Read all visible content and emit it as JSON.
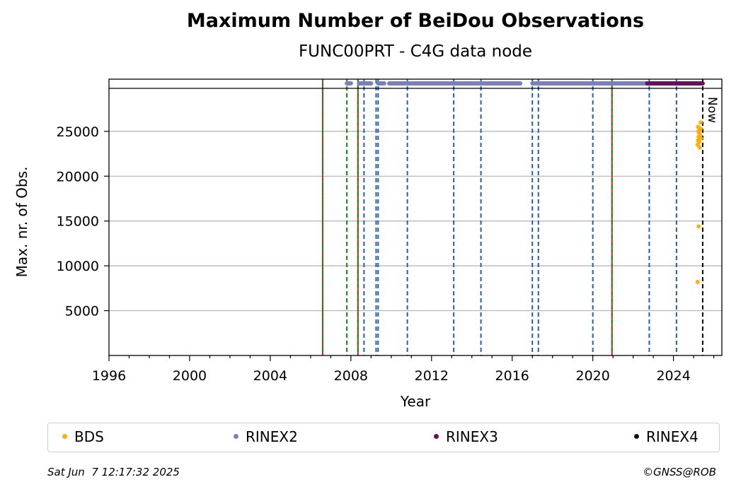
{
  "title": "Maximum Number of BeiDou Observations",
  "subtitle": "FUNC00PRT - C4G data node",
  "chart_data": {
    "type": "scatter",
    "xlabel": "Year",
    "ylabel": "Max. nr. of Obs.",
    "xlim": [
      1996,
      2026.4
    ],
    "ylim": [
      0,
      29800
    ],
    "x_ticks": [
      1996,
      2000,
      2004,
      2008,
      2012,
      2016,
      2020,
      2024
    ],
    "x_tick_labels": [
      "1996",
      "2000",
      "2004",
      "2008",
      "2012",
      "2016",
      "2020",
      "2024"
    ],
    "y_ticks": [
      5000,
      10000,
      15000,
      20000,
      25000
    ],
    "y_tick_labels": [
      "5000",
      "10000",
      "15000",
      "20000",
      "25000"
    ],
    "grid": "y",
    "now_label": "Now",
    "now_x": 2025.45,
    "series": [
      {
        "name": "BDS",
        "color": "#ffb000",
        "points": [
          [
            2025.2,
            8200
          ],
          [
            2025.25,
            14400
          ],
          [
            2025.2,
            23500
          ],
          [
            2025.22,
            24000
          ],
          [
            2025.25,
            24400
          ],
          [
            2025.28,
            24800
          ],
          [
            2025.3,
            25200
          ],
          [
            2025.22,
            25500
          ],
          [
            2025.35,
            25300
          ],
          [
            2025.27,
            23800
          ],
          [
            2025.32,
            24600
          ],
          [
            2025.24,
            25000
          ],
          [
            2025.37,
            24200
          ],
          [
            2025.3,
            23200
          ],
          [
            2025.35,
            26000
          ]
        ]
      },
      {
        "name": "RINEX2",
        "color": "#7b7fbd",
        "segments": [
          [
            2007.8,
            2008.0
          ],
          [
            2008.4,
            2009.0
          ],
          [
            2009.35,
            2009.65
          ],
          [
            2009.9,
            2016.4
          ],
          [
            2017.0,
            2022.8
          ]
        ]
      },
      {
        "name": "RINEX3",
        "color": "#6a0f5e",
        "segments": [
          [
            2022.7,
            2025.45
          ]
        ]
      },
      {
        "name": "RINEX4",
        "color": "#1e0b24",
        "segments": []
      }
    ],
    "vlines": [
      {
        "x": 2006.6,
        "style": "green-red"
      },
      {
        "x": 2007.8,
        "style": "green"
      },
      {
        "x": 2008.35,
        "style": "green-red"
      },
      {
        "x": 2008.65,
        "style": "blue"
      },
      {
        "x": 2009.25,
        "style": "blue"
      },
      {
        "x": 2009.35,
        "style": "blue"
      },
      {
        "x": 2010.8,
        "style": "blue"
      },
      {
        "x": 2013.1,
        "style": "blue"
      },
      {
        "x": 2014.45,
        "style": "blue"
      },
      {
        "x": 2017.0,
        "style": "blue"
      },
      {
        "x": 2017.3,
        "style": "blue"
      },
      {
        "x": 2020.0,
        "style": "blue"
      },
      {
        "x": 2020.95,
        "style": "green-red"
      },
      {
        "x": 2022.8,
        "style": "blue"
      },
      {
        "x": 2024.15,
        "style": "blue"
      }
    ]
  },
  "legend": {
    "items": [
      {
        "label": "BDS",
        "color": "#ffb000"
      },
      {
        "label": "RINEX2",
        "color": "#7b7fbd"
      },
      {
        "label": "RINEX3",
        "color": "#6a0f5e"
      },
      {
        "label": "RINEX4",
        "color": "#1e0b24"
      }
    ]
  },
  "footer": {
    "timestamp": "Sat Jun  7 12:17:32 2025",
    "copyright": "©GNSS@ROB"
  }
}
